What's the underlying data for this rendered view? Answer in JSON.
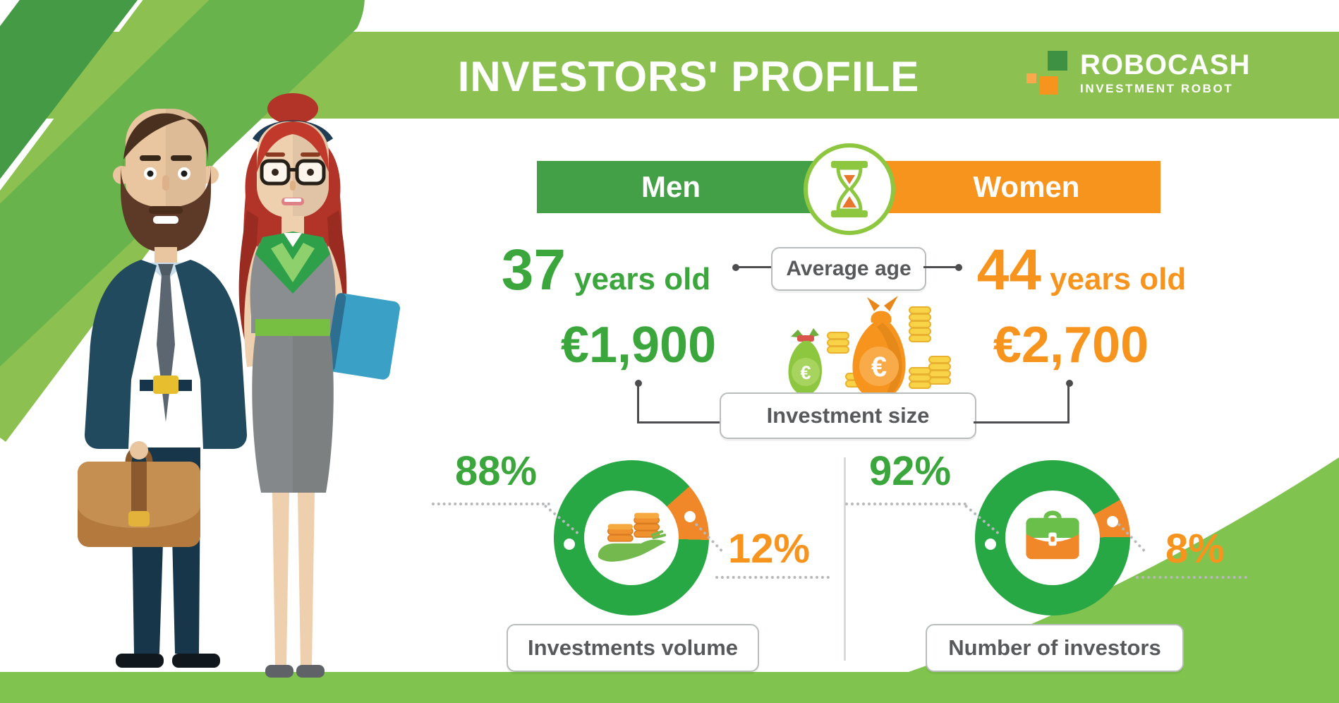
{
  "page_title": "INVESTORS' PROFILE",
  "logo": {
    "name": "ROBOCASH",
    "tagline": "INVESTMENT ROBOT"
  },
  "gender_bar": {
    "men_label": "Men",
    "women_label": "Women"
  },
  "average_age": {
    "label": "Average age",
    "men_value": "37",
    "men_unit": "years old",
    "women_value": "44",
    "women_unit": "years old"
  },
  "investment_size": {
    "label": "Investment size",
    "men_value": "€1,900",
    "women_value": "€2,700"
  },
  "icons": {
    "euro_symbol": "€"
  },
  "colors": {
    "header_green": "#8cc152",
    "men_green": "#43a047",
    "women_orange": "#f7941e",
    "donut_green": "#27a844",
    "donut_orange": "#f0882a",
    "number_green": "#3aa63c",
    "label_text": "#58595b"
  },
  "chart_data": [
    {
      "type": "pie",
      "subtype": "donut",
      "title": "Investments volume",
      "categories": [
        "Men",
        "Women"
      ],
      "values": [
        88,
        12
      ],
      "colors": [
        "#27a844",
        "#f0882a"
      ],
      "center_icon": "coins-in-hand",
      "segment_center_deg": 70,
      "legend_position": "none"
    },
    {
      "type": "pie",
      "subtype": "donut",
      "title": "Number of investors",
      "categories": [
        "Men",
        "Women"
      ],
      "values": [
        92,
        8
      ],
      "colors": [
        "#27a844",
        "#f0882a"
      ],
      "center_icon": "briefcase",
      "segment_center_deg": 75,
      "legend_position": "none"
    },
    {
      "type": "table",
      "title": "Investors' profile comparison",
      "categories": [
        "Men",
        "Women"
      ],
      "rows": [
        {
          "label": "Average age",
          "values": [
            "37 years old",
            "44 years old"
          ]
        },
        {
          "label": "Investment size",
          "values": [
            "€1,900",
            "€2,700"
          ]
        },
        {
          "label": "Investments volume",
          "values": [
            "88%",
            "12%"
          ]
        },
        {
          "label": "Number of investors",
          "values": [
            "92%",
            "8%"
          ]
        }
      ]
    }
  ]
}
